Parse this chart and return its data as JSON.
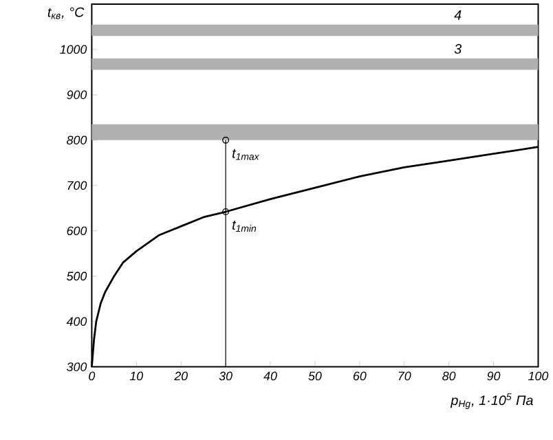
{
  "chart_data": {
    "type": "line",
    "xlabel": "p$_{Hg}$, 1·10$^{5}$ Па",
    "ylabel": "t$_{кв}$, °C",
    "xlim": [
      0,
      100
    ],
    "ylim": [
      300,
      1100
    ],
    "xticks": [
      0,
      10,
      20,
      30,
      40,
      50,
      60,
      70,
      80,
      90,
      100
    ],
    "yticks": [
      300,
      400,
      500,
      600,
      700,
      800,
      900,
      1000
    ],
    "series": [
      {
        "color": "#000000",
        "x": [
          0,
          0.5,
          1,
          2,
          3,
          5,
          7,
          10,
          15,
          20,
          25,
          30,
          40,
          50,
          60,
          70,
          80,
          90,
          100
        ],
        "values": [
          300,
          360,
          400,
          440,
          465,
          500,
          530,
          555,
          590,
          610,
          630,
          642,
          670,
          695,
          720,
          740,
          755,
          770,
          785
        ]
      },
      {
        "color": "#000000",
        "x": [
          30,
          30
        ],
        "values": [
          300,
          800
        ]
      },
      {
        "type": "scatter",
        "color": "#000000",
        "marker": "circle",
        "x": [
          30,
          30
        ],
        "values": [
          642,
          800
        ]
      }
    ],
    "bands": [
      {
        "axis": "y",
        "from": 800,
        "to": 835,
        "color": "#b0b0b0"
      },
      {
        "axis": "y",
        "from": 955,
        "to": 980,
        "label": "3",
        "color": "#b0b0b0"
      },
      {
        "axis": "y",
        "from": 1030,
        "to": 1055,
        "label": "4",
        "color": "#b0b0b0"
      }
    ],
    "annotations": [
      {
        "text": "t$_{1max}$",
        "x": 30,
        "y": 800
      },
      {
        "text": "t$_{1min}$",
        "x": 30,
        "y": 642
      }
    ]
  }
}
